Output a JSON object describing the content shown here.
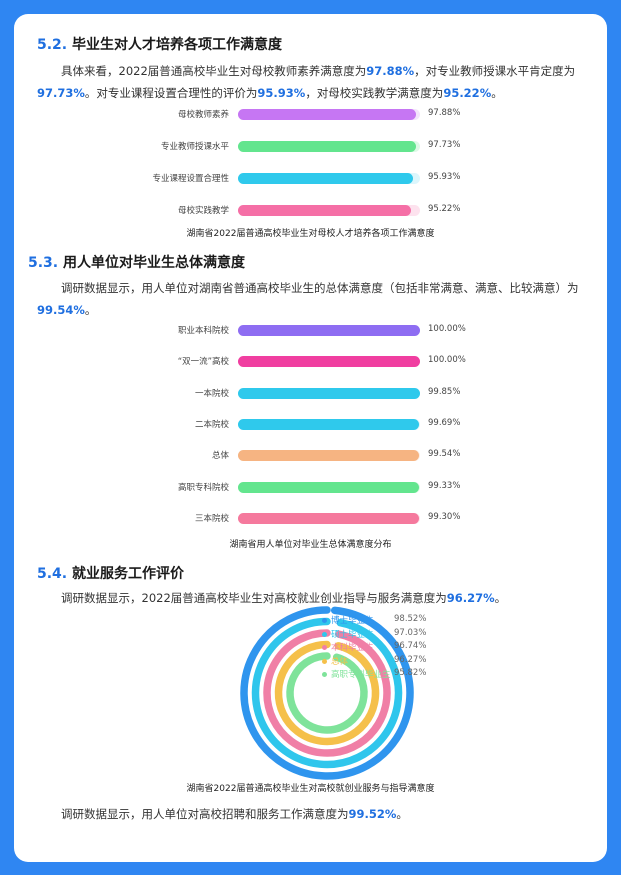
{
  "s52": {
    "num": "5.2.",
    "title": "毕业生对人才培养各项工作满意度",
    "p_a": "具体来看，2022届普通高校毕业生对母校教师素养满意度为",
    "v1": "97.88%",
    "p_b": "，对专业教师授课水平肯定度为",
    "v2": "97.73%",
    "p_c": "。对专业课程设置合理性的评价为",
    "v3": "95.93%",
    "p_d": "，对母校实践教学满意度为",
    "v4": "95.22%",
    "p_e": "。",
    "caption": "湖南省2022届普通高校毕业生对母校人才培养各项工作满意度"
  },
  "s53": {
    "num": "5.3.",
    "title": "用人单位对毕业生总体满意度",
    "p_a": "调研数据显示，用人单位对湖南省普通高校毕业生的总体满意度（包括非常满意、满意、比较满意）为",
    "v1": "99.54%",
    "p_b": "。",
    "caption": "湖南省用人单位对毕业生总体满意度分布"
  },
  "s54": {
    "num": "5.4.",
    "title": "就业服务工作评价",
    "p1_a": "调研数据显示，2022届普通高校毕业生对高校就业创业指导与服务满意度为",
    "p1_v": "96.27%",
    "p1_b": "。",
    "caption": "湖南省2022届普通高校毕业生对高校就创业服务与指导满意度",
    "p2_a": "调研数据显示，用人单位对高校招聘和服务工作满意度为",
    "p2_v": "99.52%",
    "p2_b": "。"
  },
  "chart_data": [
    {
      "type": "bar",
      "orientation": "horizontal",
      "categories": [
        "母校教师素养",
        "专业教师授课水平",
        "专业课程设置合理性",
        "母校实践教学"
      ],
      "values": [
        97.88,
        97.73,
        95.93,
        95.22
      ],
      "labels": [
        "97.88%",
        "97.73%",
        "95.93%",
        "95.22%"
      ],
      "colors": [
        "#c676f3",
        "#63e58e",
        "#2fc9ec",
        "#f56fa6"
      ],
      "tracks": [
        "#f3e3fc",
        "#ddf9e6",
        "#dcf6fc",
        "#fde2ee"
      ],
      "xlim": [
        0,
        100
      ],
      "title": "湖南省2022届普通高校毕业生对母校人才培养各项工作满意度"
    },
    {
      "type": "bar",
      "orientation": "horizontal",
      "categories": [
        "职业本科院校",
        "“双一流”高校",
        "一本院校",
        "二本院校",
        "总体",
        "高职专科院校",
        "三本院校"
      ],
      "values": [
        100.0,
        100.0,
        99.85,
        99.69,
        99.54,
        99.33,
        99.3
      ],
      "labels": [
        "100.00%",
        "100.00%",
        "99.85%",
        "99.69%",
        "99.54%",
        "99.33%",
        "99.30%"
      ],
      "colors": [
        "#8e6df2",
        "#f03ea0",
        "#2fc9ec",
        "#2fc9ec",
        "#f6b482",
        "#63e58e",
        "#f5799d"
      ],
      "tracks": [
        "#ebe4fd",
        "#fde0ef",
        "#dcf6fc",
        "#dcf6fc",
        "#fdeee3",
        "#ddf9e6",
        "#fde2ea"
      ],
      "xlim": [
        0,
        100
      ],
      "title": "湖南省用人单位对毕业生总体满意度分布"
    },
    {
      "type": "radial-bar",
      "categories": [
        "博士毕业生",
        "硕士毕业生",
        "本科毕业生",
        "总体",
        "高职专科毕业生"
      ],
      "values": [
        98.52,
        97.03,
        96.74,
        96.27,
        95.82
      ],
      "labels": [
        "98.52%",
        "97.03%",
        "96.74%",
        "96.27%",
        "95.82%"
      ],
      "colors": [
        "#2f95ee",
        "#2fc6ec",
        "#f07fa6",
        "#f5c04a",
        "#7fe39a"
      ],
      "max": 100,
      "title": "湖南省2022届普通高校毕业生对高校就创业服务与指导满意度"
    }
  ]
}
